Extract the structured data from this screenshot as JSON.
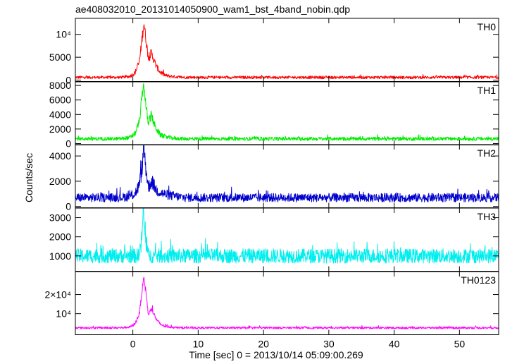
{
  "chart_data": {
    "type": "line",
    "title": "ae408032010_20131014050900_wam1_bst_4band_nobin.qdp",
    "xlabel": "Time [sec] 0 = 2013/10/14 05:09:00.269",
    "ylabel": "Counts/sec",
    "xlim": [
      -8.8,
      56.0
    ],
    "x_ticks": [
      0,
      10,
      20,
      30,
      40,
      50
    ],
    "x_tick_labels": [
      "0",
      "10",
      "20",
      "30",
      "40",
      "50"
    ],
    "panels": [
      {
        "name": "TH0",
        "color": "#ff0000",
        "ylim": [
          -300,
          13500
        ],
        "y_ticks": [
          0,
          5000,
          10000
        ],
        "y_tick_labels": [
          "0",
          "5000",
          "10⁴"
        ],
        "baseline": 600,
        "noise": 260,
        "x": [
          -8.8,
          -2.0,
          -0.5,
          0.3,
          1.0,
          1.4,
          1.7,
          2.0,
          2.4,
          2.8,
          3.2,
          3.6,
          4.2,
          5.0,
          6.5,
          8.0,
          56.0
        ],
        "y": [
          600,
          600,
          800,
          1500,
          4000,
          9000,
          12500,
          9000,
          4500,
          6000,
          4500,
          3000,
          1700,
          1000,
          700,
          600,
          600
        ]
      },
      {
        "name": "TH1",
        "color": "#00ee00",
        "ylim": [
          -200,
          8500
        ],
        "y_ticks": [
          0,
          2000,
          4000,
          6000,
          8000
        ],
        "y_tick_labels": [
          "0",
          "2000",
          "4000",
          "6000",
          "8000"
        ],
        "baseline": 650,
        "noise": 220,
        "x": [
          -8.8,
          -2.0,
          -0.5,
          0.3,
          1.0,
          1.4,
          1.7,
          2.0,
          2.4,
          2.8,
          3.2,
          3.6,
          4.2,
          5.0,
          6.5,
          8.0,
          56.0
        ],
        "y": [
          650,
          650,
          800,
          1300,
          3000,
          6500,
          8200,
          5200,
          2500,
          4000,
          2800,
          2000,
          1200,
          900,
          700,
          650,
          650
        ]
      },
      {
        "name": "TH2",
        "color": "#0000cc",
        "ylim": [
          -100,
          4900
        ],
        "y_ticks": [
          0,
          2000,
          4000
        ],
        "y_tick_labels": [
          "0",
          "2000",
          "4000"
        ],
        "baseline": 700,
        "noise": 300,
        "x": [
          -8.8,
          -2.0,
          -0.5,
          0.3,
          1.0,
          1.4,
          1.7,
          2.0,
          2.4,
          2.8,
          3.2,
          3.6,
          4.2,
          5.0,
          6.5,
          8.0,
          56.0
        ],
        "y": [
          700,
          700,
          800,
          1000,
          1700,
          3000,
          4600,
          3000,
          1500,
          2000,
          1700,
          1300,
          1100,
          950,
          800,
          700,
          700
        ]
      },
      {
        "name": "TH3",
        "color": "#00eeee",
        "ylim": [
          200,
          3500
        ],
        "y_ticks": [
          1000,
          2000,
          3000
        ],
        "y_tick_labels": [
          "1000",
          "2000",
          "3000"
        ],
        "baseline": 1000,
        "noise": 330,
        "x": [
          -8.8,
          0.8,
          1.3,
          1.6,
          1.9,
          2.4,
          56.0
        ],
        "y": [
          1000,
          1000,
          1600,
          3300,
          1900,
          1000,
          1000
        ]
      },
      {
        "name": "TH0123",
        "color": "#ff00ff",
        "ylim": [
          -1000,
          32000
        ],
        "y_ticks": [
          10000,
          20000
        ],
        "y_tick_labels": [
          "10⁴",
          "2×10⁴"
        ],
        "baseline": 2600,
        "noise": 480,
        "x": [
          -8.8,
          -2.0,
          -0.5,
          0.3,
          1.0,
          1.4,
          1.7,
          2.0,
          2.4,
          2.8,
          3.2,
          3.6,
          4.2,
          5.0,
          6.5,
          8.0,
          56.0
        ],
        "y": [
          2600,
          2600,
          3000,
          4500,
          10000,
          22000,
          29000,
          21000,
          9000,
          13000,
          10000,
          7000,
          4500,
          3300,
          2800,
          2600,
          2600
        ]
      }
    ]
  }
}
